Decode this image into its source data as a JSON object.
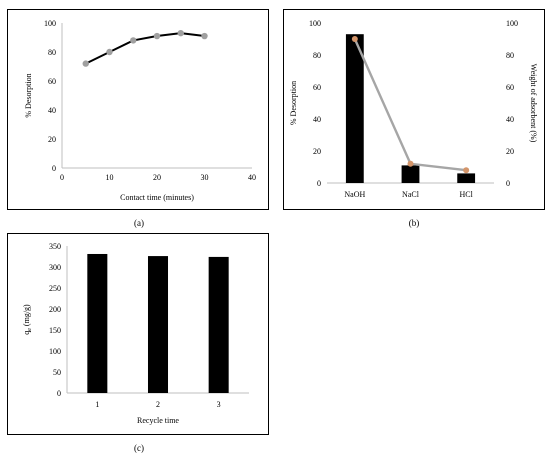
{
  "panels": {
    "a": {
      "label": "(a)"
    },
    "b": {
      "label": "(b)"
    },
    "c": {
      "label": "(c)"
    }
  },
  "chart_data": [
    {
      "id": "a",
      "type": "line",
      "xlabel": "Contact time (minutes)",
      "ylabel": "% Desorption",
      "xlim": [
        0,
        40
      ],
      "ylim": [
        0,
        100
      ],
      "xticks": [
        0,
        10,
        20,
        30,
        40
      ],
      "yticks": [
        0,
        20,
        40,
        60,
        80,
        100
      ],
      "grid": false,
      "series": [
        {
          "x": [
            5,
            10,
            15,
            20,
            25,
            30
          ],
          "values": [
            72,
            80,
            88,
            91,
            93,
            91
          ],
          "color": "#000000",
          "marker_color": "#a0a0a0"
        }
      ]
    },
    {
      "id": "b",
      "type": "bar",
      "categories": [
        "NaOH",
        "NaCl",
        "HCl"
      ],
      "ylabel": "% Desorption",
      "y2label": "Weight of adsorbent (%)",
      "ylim": [
        0,
        100
      ],
      "y2lim": [
        0,
        100
      ],
      "yticks": [
        0,
        20,
        40,
        60,
        80,
        100
      ],
      "y2ticks": [
        0,
        20,
        40,
        60,
        80,
        100
      ],
      "grid": false,
      "series": [
        {
          "type": "bar",
          "axis": "left",
          "values": [
            93,
            11,
            6
          ],
          "color": "#000000"
        },
        {
          "type": "line",
          "axis": "right",
          "values": [
            90,
            12,
            8
          ],
          "color": "#a6a6a6",
          "marker_color": "#d4956a"
        }
      ]
    },
    {
      "id": "c",
      "type": "bar",
      "categories": [
        "1",
        "2",
        "3"
      ],
      "xlabel": "Recycle time",
      "ylabel": "qe (mg/g)",
      "ylim": [
        0,
        350
      ],
      "yticks": [
        0,
        50,
        100,
        150,
        200,
        250,
        300,
        350
      ],
      "grid": false,
      "series": [
        {
          "values": [
            331,
            326,
            324
          ],
          "color": "#000000"
        }
      ]
    }
  ]
}
